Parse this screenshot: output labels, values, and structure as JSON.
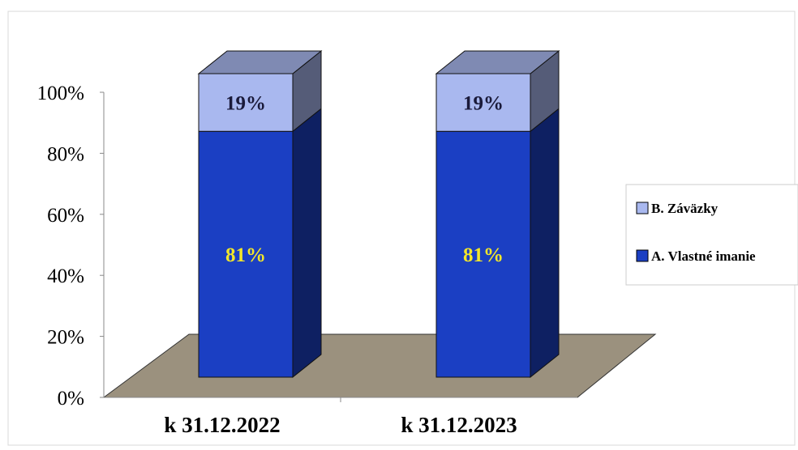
{
  "chart_data": {
    "type": "bar",
    "stacked": true,
    "percent_stacked": true,
    "three_d": true,
    "categories": [
      "k 31.12.2022",
      "k 31.12.2023"
    ],
    "series": [
      {
        "name": "A. Vlastné imanie",
        "values": [
          81,
          81
        ],
        "labels": [
          "81%",
          "81%"
        ],
        "color": "#1b3fc3"
      },
      {
        "name": "B. Záväzky",
        "values": [
          19,
          19
        ],
        "labels": [
          "19%",
          "19%"
        ],
        "color": "#a9b8ef"
      }
    ],
    "yticks": [
      "0%",
      "20%",
      "40%",
      "60%",
      "80%",
      "100%"
    ],
    "ylim": [
      0,
      100
    ],
    "legend": "right",
    "grid": false,
    "floor_color": "#9b917e",
    "label_colors": {
      "inside_bottom": "#f2e62a",
      "inside_top": "#1a1a3a"
    }
  }
}
